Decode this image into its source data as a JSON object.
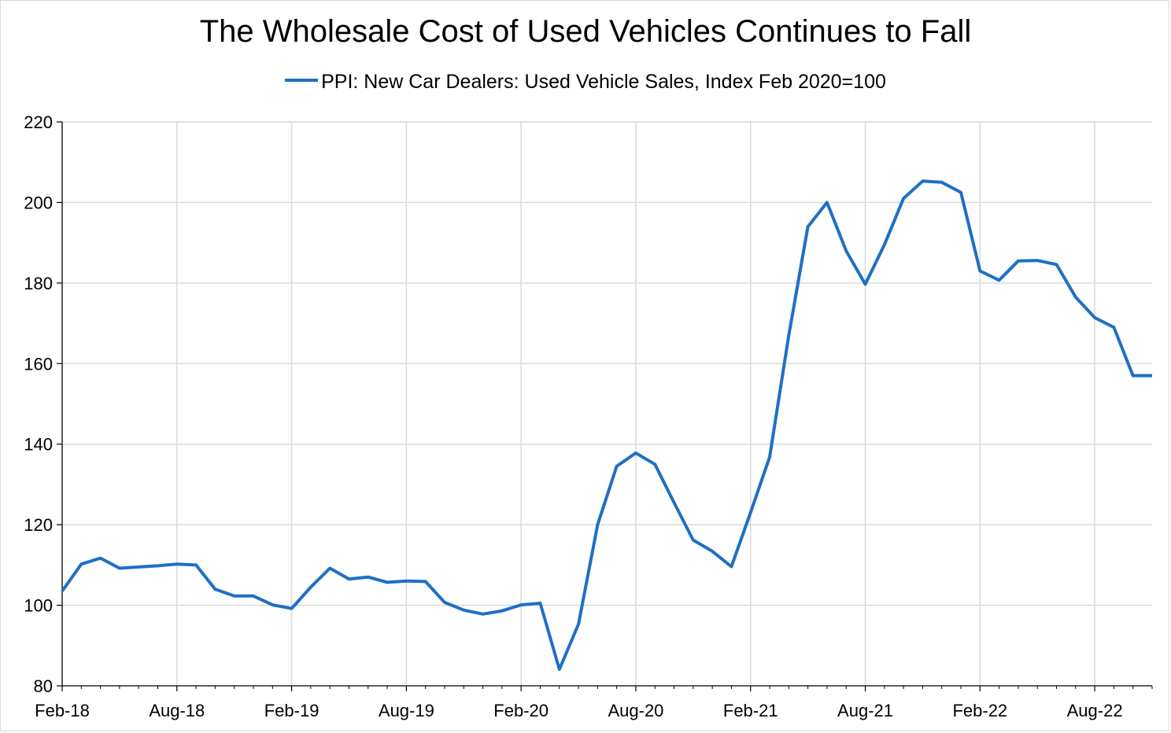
{
  "chart_data": {
    "type": "line",
    "title": "The Wholesale Cost of Used Vehicles Continues to Fall",
    "legend": "top-center",
    "xlabel": "",
    "ylabel": "",
    "ylim": [
      80,
      220
    ],
    "yticks": [
      "80",
      "100",
      "120",
      "140",
      "160",
      "180",
      "200",
      "220"
    ],
    "xticks": [
      "Feb-18",
      "Aug-18",
      "Feb-19",
      "Aug-19",
      "Feb-20",
      "Aug-20",
      "Feb-21",
      "Aug-21",
      "Feb-22",
      "Aug-22"
    ],
    "grid": true,
    "series": [
      {
        "name": "PPI: New Car Dealers: Used Vehicle Sales, Index Feb 2020=100",
        "color": "#1f6fc5",
        "start": "Feb-18",
        "frequency": "monthly",
        "values": [
          103.5,
          110.2,
          111.7,
          109.2,
          109.5,
          109.8,
          110.2,
          110.0,
          104.0,
          102.3,
          102.3,
          100.1,
          99.2,
          104.5,
          109.2,
          106.5,
          107.0,
          105.7,
          106.0,
          105.9,
          100.7,
          98.8,
          97.8,
          98.6,
          100.1,
          100.5,
          84.1,
          95.3,
          120.0,
          134.5,
          137.8,
          135.0,
          125.5,
          116.2,
          113.4,
          109.6,
          123.0,
          136.8,
          167.0,
          194.0,
          200.0,
          188.0,
          179.7,
          189.5,
          201.0,
          205.3,
          205.0,
          202.5,
          183.0,
          180.7,
          185.5,
          185.6,
          184.6,
          176.5,
          171.4,
          169.0,
          157.0,
          157.0
        ]
      }
    ]
  }
}
